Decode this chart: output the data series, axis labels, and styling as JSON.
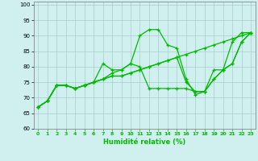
{
  "xlabel": "Humidité relative (%)",
  "xlim": [
    -0.5,
    23.5
  ],
  "ylim": [
    60,
    101
  ],
  "xticks": [
    0,
    1,
    2,
    3,
    4,
    5,
    6,
    7,
    8,
    9,
    10,
    11,
    12,
    13,
    14,
    15,
    16,
    17,
    18,
    19,
    20,
    21,
    22,
    23
  ],
  "yticks": [
    60,
    65,
    70,
    75,
    80,
    85,
    90,
    95,
    100
  ],
  "bg_color": "#cff0ee",
  "grid_color": "#aacccc",
  "line_color": "#00bb00",
  "lines": [
    [
      67,
      69,
      74,
      74,
      73,
      74,
      75,
      76,
      78,
      79,
      81,
      90,
      92,
      92,
      87,
      86,
      76,
      71,
      72,
      79,
      79,
      88,
      91,
      91
    ],
    [
      67,
      69,
      74,
      74,
      73,
      74,
      75,
      81,
      79,
      79,
      81,
      80,
      73,
      73,
      73,
      73,
      73,
      72,
      72,
      76,
      79,
      81,
      88,
      91
    ],
    [
      67,
      69,
      74,
      74,
      73,
      74,
      75,
      76,
      77,
      77,
      78,
      79,
      80,
      81,
      82,
      83,
      84,
      85,
      86,
      87,
      88,
      89,
      90,
      91
    ],
    [
      67,
      69,
      74,
      74,
      73,
      74,
      75,
      76,
      77,
      77,
      78,
      79,
      80,
      81,
      82,
      83,
      75,
      72,
      72,
      76,
      79,
      81,
      88,
      91
    ]
  ]
}
